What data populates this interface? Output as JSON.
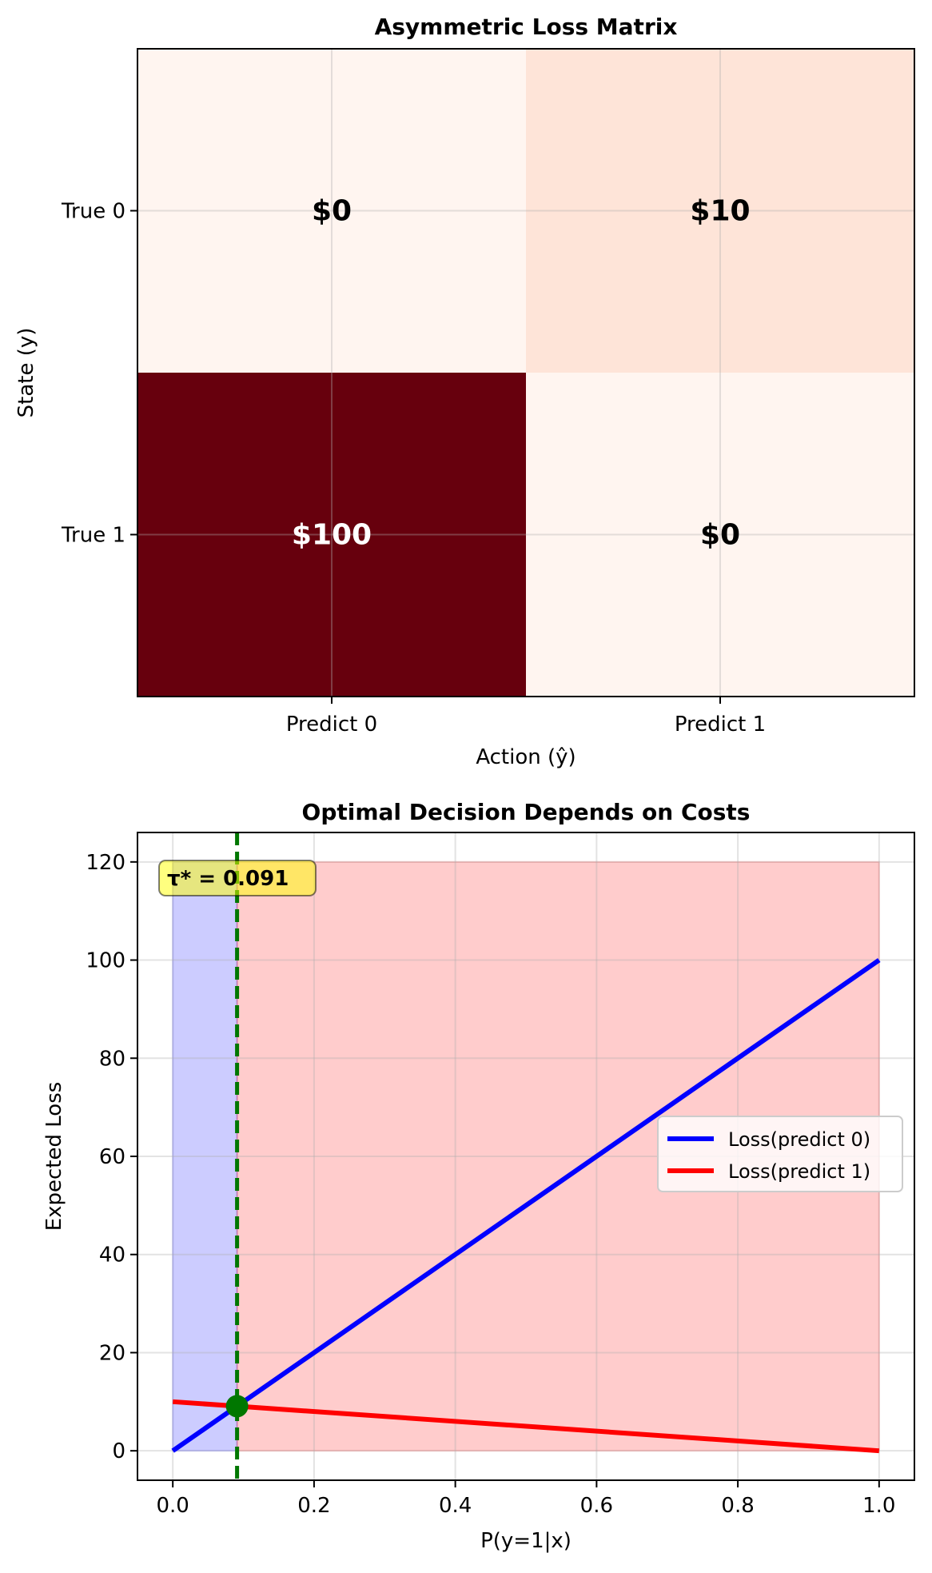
{
  "chart_data": [
    {
      "type": "heatmap",
      "title": "Asymmetric Loss Matrix",
      "xlabel": "Action (ŷ)",
      "ylabel": "State (y)",
      "x_categories": [
        "Predict 0",
        "Predict 1"
      ],
      "y_categories": [
        "True 0",
        "True 1"
      ],
      "values": [
        [
          0,
          10
        ],
        [
          100,
          0
        ]
      ],
      "cell_labels": [
        [
          "$0",
          "$10"
        ],
        [
          "$100",
          "$0"
        ]
      ],
      "colormap": "Reds",
      "value_range": [
        0,
        100
      ],
      "grid": true
    },
    {
      "type": "line",
      "title": "Optimal Decision Depends on Costs",
      "xlabel": "P(y=1|x)",
      "ylabel": "Expected Loss",
      "xlim": [
        -0.05,
        1.05
      ],
      "ylim": [
        -6,
        126
      ],
      "x_ticks": [
        "0.0",
        "0.2",
        "0.4",
        "0.6",
        "0.8",
        "1.0"
      ],
      "y_ticks": [
        "0",
        "20",
        "40",
        "60",
        "80",
        "100",
        "120"
      ],
      "grid": true,
      "legend_position": "center-right",
      "series": [
        {
          "name": "Loss(predict 0)",
          "color": "#0000ff",
          "x": [
            0,
            1
          ],
          "y": [
            0,
            100
          ]
        },
        {
          "name": "Loss(predict 1)",
          "color": "#ff0000",
          "x": [
            0,
            1
          ],
          "y": [
            10,
            0
          ]
        }
      ],
      "threshold": {
        "x": 0.091,
        "y": 9.09,
        "label": "τ* = 0.091",
        "color": "#007700"
      },
      "regions": [
        {
          "x": [
            0,
            0.091
          ],
          "y": [
            0,
            120
          ],
          "color": "#0000ff"
        },
        {
          "x": [
            0.091,
            1.0
          ],
          "y": [
            0,
            120
          ],
          "color": "#ff0000"
        }
      ]
    }
  ]
}
